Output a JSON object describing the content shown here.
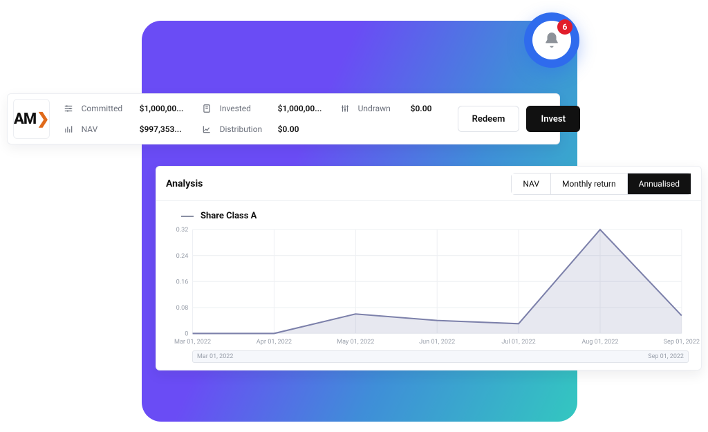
{
  "notification": {
    "count": "6"
  },
  "logo": {
    "text": "AM",
    "accent": "❯"
  },
  "stats": {
    "committed": {
      "label": "Committed",
      "value": "$1,000,00..."
    },
    "nav": {
      "label": "NAV",
      "value": "$997,353..."
    },
    "invested": {
      "label": "Invested",
      "value": "$1,000,00..."
    },
    "distribution": {
      "label": "Distribution",
      "value": "$0.00"
    },
    "undrawn": {
      "label": "Undrawn",
      "value": "$0.00"
    }
  },
  "actions": {
    "redeem": "Redeem",
    "invest": "Invest"
  },
  "analysis": {
    "title": "Analysis",
    "tabs": {
      "nav": "NAV",
      "monthly": "Monthly return",
      "annualised": "Annualised"
    },
    "active_tab": "annualised",
    "series_name": "Share Class A",
    "chart": {
      "type": "area",
      "ylim": [
        0,
        0.32
      ],
      "yticks": [
        0,
        0.08,
        0.16,
        0.24,
        0.32
      ],
      "xlabels": [
        "Mar 01, 2022",
        "Apr 01, 2022",
        "May 01, 2022",
        "Jun 01, 2022",
        "Jul 01, 2022",
        "Aug 01, 2022",
        "Sep 01, 2022"
      ],
      "values": [
        0.0,
        0.0,
        0.06,
        0.04,
        0.03,
        0.32,
        0.055
      ],
      "stroke_color": "#7c80aa",
      "fill_color": "rgba(124,128,170,0.18)",
      "grid_color": "#eef0f3",
      "label_color": "#9aa0ab",
      "background_color": "#ffffff"
    },
    "range": {
      "start": "Mar 01, 2022",
      "end": "Sep 01, 2022"
    }
  }
}
